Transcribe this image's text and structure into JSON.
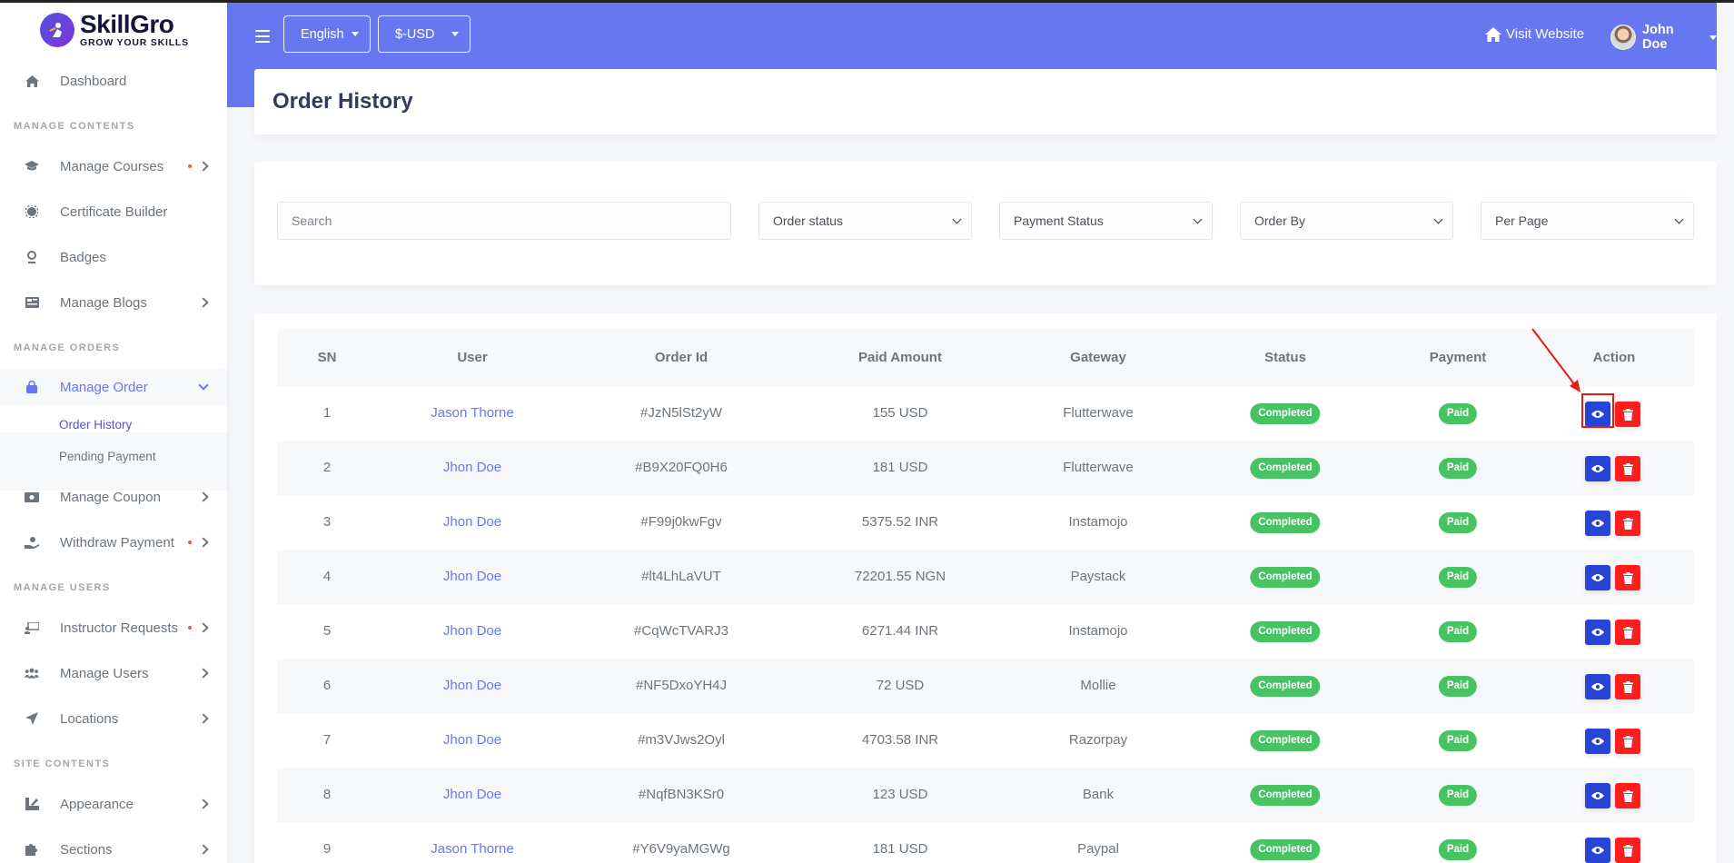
{
  "brand": {
    "name": "SkillGro",
    "tagline": "GROW YOUR SKILLS"
  },
  "sidebar": {
    "dashboard": "Dashboard",
    "sections": {
      "contents": "MANAGE CONTENTS",
      "orders": "MANAGE ORDERS",
      "users": "MANAGE USERS",
      "site": "SITE CONTENTS"
    },
    "items": {
      "courses": "Manage Courses",
      "certificate": "Certificate Builder",
      "badges": "Badges",
      "blogs": "Manage Blogs",
      "order": "Manage Order",
      "order_history": "Order History",
      "pending_payment": "Pending Payment",
      "coupon": "Manage Coupon",
      "withdraw": "Withdraw Payment",
      "instructor_requests": "Instructor Requests",
      "manage_users": "Manage Users",
      "locations": "Locations",
      "appearance": "Appearance",
      "sections": "Sections"
    }
  },
  "header": {
    "language": "English",
    "currency": "$-USD",
    "visit_website": "Visit Website",
    "user_name": "John Doe"
  },
  "page": {
    "title": "Order History"
  },
  "filters": {
    "search_placeholder": "Search",
    "order_status": "Order status",
    "payment_status": "Payment Status",
    "order_by": "Order By",
    "per_page": "Per Page"
  },
  "table": {
    "headers": {
      "sn": "SN",
      "user": "User",
      "order_id": "Order Id",
      "paid_amount": "Paid Amount",
      "gateway": "Gateway",
      "status": "Status",
      "payment": "Payment",
      "action": "Action"
    },
    "rows": [
      {
        "sn": "1",
        "user": "Jason Thorne",
        "order_id": "#JzN5lSt2yW",
        "amount": "155 USD",
        "gateway": "Flutterwave",
        "status": "Completed",
        "payment": "Paid"
      },
      {
        "sn": "2",
        "user": "Jhon Doe",
        "order_id": "#B9X20FQ0H6",
        "amount": "181 USD",
        "gateway": "Flutterwave",
        "status": "Completed",
        "payment": "Paid"
      },
      {
        "sn": "3",
        "user": "Jhon Doe",
        "order_id": "#F99j0kwFgv",
        "amount": "5375.52 INR",
        "gateway": "Instamojo",
        "status": "Completed",
        "payment": "Paid"
      },
      {
        "sn": "4",
        "user": "Jhon Doe",
        "order_id": "#lt4LhLaVUT",
        "amount": "72201.55 NGN",
        "gateway": "Paystack",
        "status": "Completed",
        "payment": "Paid"
      },
      {
        "sn": "5",
        "user": "Jhon Doe",
        "order_id": "#CqWcTVARJ3",
        "amount": "6271.44 INR",
        "gateway": "Instamojo",
        "status": "Completed",
        "payment": "Paid"
      },
      {
        "sn": "6",
        "user": "Jhon Doe",
        "order_id": "#NF5DxoYH4J",
        "amount": "72 USD",
        "gateway": "Mollie",
        "status": "Completed",
        "payment": "Paid"
      },
      {
        "sn": "7",
        "user": "Jhon Doe",
        "order_id": "#m3VJws2Oyl",
        "amount": "4703.58 INR",
        "gateway": "Razorpay",
        "status": "Completed",
        "payment": "Paid"
      },
      {
        "sn": "8",
        "user": "Jhon Doe",
        "order_id": "#NqfBN3KSr0",
        "amount": "123 USD",
        "gateway": "Bank",
        "status": "Completed",
        "payment": "Paid"
      },
      {
        "sn": "9",
        "user": "Jason Thorne",
        "order_id": "#Y6V9yaMGWg",
        "amount": "181 USD",
        "gateway": "Paypal",
        "status": "Completed",
        "payment": "Paid"
      }
    ]
  },
  "colors": {
    "primary": "#6777ef",
    "brand": "#5751e1",
    "success": "#47c363",
    "view_button": "#2744d4",
    "delete_button": "#ff1d1d",
    "highlight": "#e61919"
  }
}
